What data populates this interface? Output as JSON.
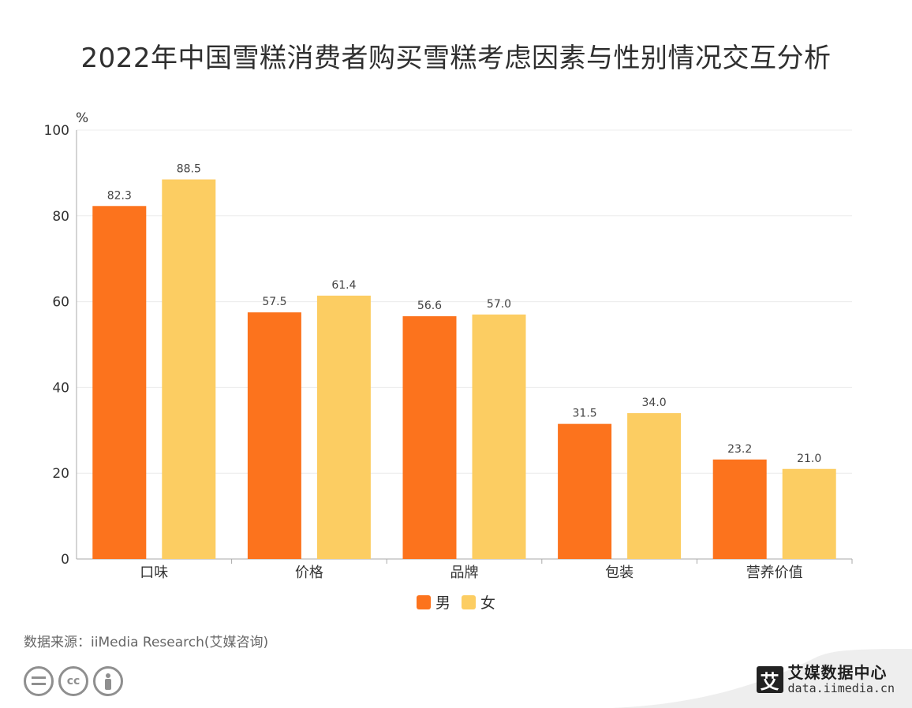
{
  "title": "2022年中国雪糕消费者购买雪糕考虑因素与性别情况交互分析",
  "colors": {
    "male": "#fc731d",
    "female": "#fccd62",
    "grid": "#ececec",
    "axis": "#aaaaaa"
  },
  "chart_data": {
    "type": "bar",
    "title": "2022年中国雪糕消费者购买雪糕考虑因素与性别情况交互分析",
    "ylabel": "%",
    "ylim": [
      0,
      100
    ],
    "yticks": [
      "0",
      "20",
      "40",
      "60",
      "80",
      "100"
    ],
    "categories": [
      "口味",
      "价格",
      "品牌",
      "包装",
      "营养价值"
    ],
    "series": [
      {
        "name": "男",
        "values": [
          82.3,
          57.5,
          56.6,
          31.5,
          23.2
        ],
        "labels": [
          "82.3",
          "57.5",
          "56.6",
          "31.5",
          "23.2"
        ]
      },
      {
        "name": "女",
        "values": [
          88.5,
          61.4,
          57.0,
          34.0,
          21.0
        ],
        "labels": [
          "88.5",
          "61.4",
          "57.0",
          "34.0",
          "21.0"
        ]
      }
    ],
    "grid": true,
    "legend": "bottom"
  },
  "legend": {
    "male": "男",
    "female": "女"
  },
  "source": "数据来源：iiMedia Research(艾媒咨询)",
  "brand": {
    "logo_char": "艾",
    "name": "艾媒数据中心",
    "url": "data.iimedia.cn"
  },
  "icons": [
    "cc-equals-icon",
    "cc-icon",
    "cc-person-icon"
  ]
}
